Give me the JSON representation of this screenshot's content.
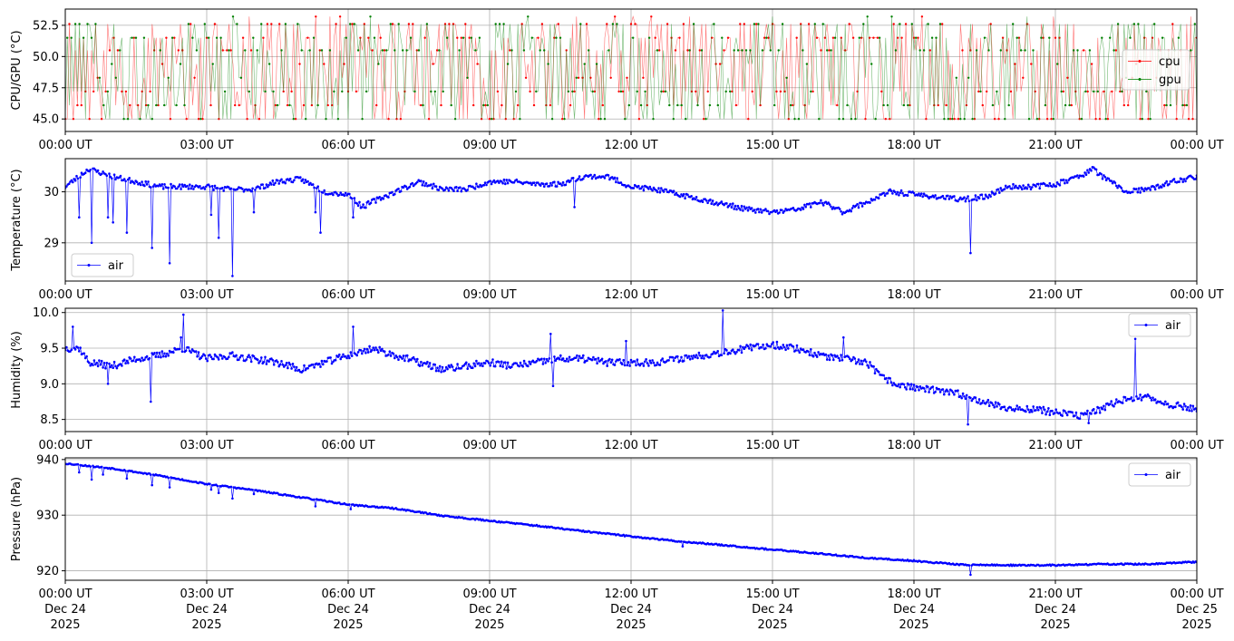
{
  "chart_data": [
    {
      "type": "line",
      "ylabel": "CPU/GPU (°C)",
      "ylim": [
        44.0,
        53.8
      ],
      "yticks": [
        45.0,
        47.5,
        50.0,
        52.5
      ],
      "ytick_labels": [
        "45.0",
        "47.5",
        "50.0",
        "52.5"
      ],
      "xlim": [
        0,
        24
      ],
      "xticks": [
        0,
        3,
        6,
        9,
        12,
        15,
        18,
        21,
        24
      ],
      "xtick_labels": [
        "00:00 UT",
        "03:00 UT",
        "06:00 UT",
        "09:00 UT",
        "12:00 UT",
        "15:00 UT",
        "18:00 UT",
        "21:00 UT",
        "00:00 UT"
      ],
      "grid": true,
      "legend": "right",
      "signal": {
        "kind": "oscillating",
        "seed": 11,
        "levels": [
          45.0,
          46.1,
          47.2,
          48.3,
          49.4,
          50.5,
          51.5,
          52.6
        ],
        "spikes": [
          53.2
        ]
      },
      "series": [
        {
          "name": "cpu",
          "color": "#ff0000",
          "values_x": [
            0,
            2,
            4,
            6,
            8,
            10,
            12,
            14,
            16,
            18,
            20,
            22,
            24
          ],
          "values_y": [
            49,
            48.5,
            48.8,
            48.2,
            48.4,
            48.6,
            48.5,
            48.3,
            48.4,
            48.5,
            48.6,
            48.9,
            48.7
          ]
        },
        {
          "name": "gpu",
          "color": "#008000",
          "values_x": [
            0,
            2,
            4,
            6,
            8,
            10,
            12,
            14,
            16,
            18,
            20,
            22,
            24
          ],
          "values_y": [
            48.8,
            48.3,
            48.6,
            48.0,
            48.2,
            48.4,
            48.3,
            48.1,
            48.2,
            48.3,
            48.4,
            48.7,
            48.5
          ]
        }
      ]
    },
    {
      "type": "line",
      "ylabel": "Temperature (°C)",
      "ylim": [
        28.25,
        30.65
      ],
      "yticks": [
        29.0,
        30.0
      ],
      "ytick_labels": [
        "29",
        "30"
      ],
      "xlim": [
        0,
        24
      ],
      "xticks": [
        0,
        3,
        6,
        9,
        12,
        15,
        18,
        21,
        24
      ],
      "xtick_labels": [
        "00:00 UT",
        "03:00 UT",
        "06:00 UT",
        "09:00 UT",
        "12:00 UT",
        "15:00 UT",
        "18:00 UT",
        "21:00 UT",
        "00:00 UT"
      ],
      "grid": true,
      "legend": "lower-left",
      "signal": {
        "kind": "noisy",
        "seed": 23,
        "noise": 0.05,
        "dips": [
          [
            0.3,
            29.5
          ],
          [
            0.55,
            29.0
          ],
          [
            0.9,
            29.5
          ],
          [
            1.0,
            29.4
          ],
          [
            1.3,
            29.2
          ],
          [
            1.85,
            28.9
          ],
          [
            2.2,
            28.6
          ],
          [
            3.1,
            29.55
          ],
          [
            3.25,
            29.1
          ],
          [
            3.55,
            28.35
          ],
          [
            4.0,
            29.6
          ],
          [
            5.3,
            29.6
          ],
          [
            5.4,
            29.2
          ],
          [
            6.1,
            29.5
          ],
          [
            10.8,
            29.7
          ],
          [
            19.2,
            28.8
          ]
        ]
      },
      "series": [
        {
          "name": "air",
          "color": "#0000ff",
          "values_x": [
            0,
            0.5,
            1,
            1.5,
            2,
            2.5,
            3,
            3.5,
            4,
            4.5,
            5,
            5.5,
            6,
            6.3,
            6.5,
            7,
            7.5,
            8,
            8.5,
            9,
            9.5,
            10,
            10.5,
            11,
            11.5,
            12,
            12.5,
            13,
            13.5,
            14,
            14.5,
            15,
            15.5,
            16,
            16.3,
            16.5,
            17,
            17.5,
            18,
            18.5,
            19,
            19.5,
            20,
            20.5,
            21,
            21.5,
            21.8,
            22,
            22.5,
            23,
            23.5,
            24
          ],
          "values_y": [
            30.1,
            30.45,
            30.3,
            30.2,
            30.1,
            30.1,
            30.1,
            30.05,
            30.05,
            30.2,
            30.25,
            30.0,
            29.95,
            29.7,
            29.8,
            30.0,
            30.2,
            30.05,
            30.05,
            30.2,
            30.2,
            30.15,
            30.15,
            30.3,
            30.3,
            30.1,
            30.05,
            29.95,
            29.85,
            29.75,
            29.65,
            29.6,
            29.65,
            29.8,
            29.7,
            29.6,
            29.8,
            30.0,
            29.95,
            29.9,
            29.85,
            29.9,
            30.1,
            30.1,
            30.15,
            30.3,
            30.45,
            30.3,
            30.0,
            30.05,
            30.2,
            30.3
          ]
        }
      ]
    },
    {
      "type": "line",
      "ylabel": "Humidity (%)",
      "ylim": [
        8.33,
        10.06
      ],
      "yticks": [
        8.5,
        9.0,
        9.5,
        10.0
      ],
      "ytick_labels": [
        "8.5",
        "9.0",
        "9.5",
        "10.0"
      ],
      "xlim": [
        0,
        24
      ],
      "xticks": [
        0,
        3,
        6,
        9,
        12,
        15,
        18,
        21,
        24
      ],
      "xtick_labels": [
        "00:00 UT",
        "03:00 UT",
        "06:00 UT",
        "09:00 UT",
        "12:00 UT",
        "15:00 UT",
        "18:00 UT",
        "21:00 UT",
        "00:00 UT"
      ],
      "grid": true,
      "legend": "upper-right",
      "signal": {
        "kind": "noisy",
        "seed": 37,
        "noise": 0.05,
        "spikes": [
          [
            0.15,
            9.8
          ],
          [
            0.9,
            9.0
          ],
          [
            1.8,
            8.75
          ],
          [
            2.45,
            9.65
          ],
          [
            2.5,
            9.97
          ],
          [
            6.1,
            9.8
          ],
          [
            10.3,
            9.7
          ],
          [
            10.35,
            8.97
          ],
          [
            11.9,
            9.6
          ],
          [
            13.95,
            10.03
          ],
          [
            16.5,
            9.65
          ],
          [
            19.15,
            8.43
          ],
          [
            22.7,
            9.63
          ],
          [
            21.7,
            8.45
          ]
        ]
      },
      "series": [
        {
          "name": "air",
          "color": "#0000ff",
          "values_x": [
            0,
            0.3,
            0.5,
            1,
            1.5,
            2,
            2.5,
            3,
            3.5,
            4,
            4.5,
            5,
            5.5,
            6,
            6.3,
            6.5,
            7,
            7.5,
            8,
            8.5,
            9,
            9.5,
            10,
            10.5,
            11,
            11.5,
            12,
            12.5,
            13,
            13.5,
            14,
            14.5,
            15,
            15.5,
            16,
            16.5,
            17,
            17.3,
            17.6,
            18,
            18.5,
            19,
            19.5,
            20,
            20.5,
            21,
            21.5,
            22,
            22.5,
            23,
            23.5,
            24
          ],
          "values_y": [
            9.5,
            9.5,
            9.3,
            9.25,
            9.35,
            9.4,
            9.5,
            9.35,
            9.4,
            9.35,
            9.3,
            9.2,
            9.3,
            9.4,
            9.45,
            9.5,
            9.4,
            9.3,
            9.2,
            9.25,
            9.3,
            9.25,
            9.3,
            9.35,
            9.35,
            9.3,
            9.3,
            9.3,
            9.35,
            9.4,
            9.45,
            9.5,
            9.55,
            9.5,
            9.4,
            9.35,
            9.3,
            9.1,
            9.0,
            8.95,
            8.9,
            8.85,
            8.75,
            8.65,
            8.65,
            8.6,
            8.55,
            8.65,
            8.8,
            8.8,
            8.7,
            8.65
          ]
        }
      ]
    },
    {
      "type": "line",
      "ylabel": "Pressure (hPa)",
      "ylim": [
        918.3,
        940.3
      ],
      "yticks": [
        920,
        930,
        940
      ],
      "ytick_labels": [
        "920",
        "930",
        "940"
      ],
      "xlim": [
        0,
        24
      ],
      "xticks": [
        0,
        3,
        6,
        9,
        12,
        15,
        18,
        21,
        24
      ],
      "xtick_labels": [
        "00:00 UT\nDec 24\n2025",
        "03:00 UT\nDec 24\n2025",
        "06:00 UT\nDec 24\n2025",
        "09:00 UT\nDec 24\n2025",
        "12:00 UT\nDec 24\n2025",
        "15:00 UT\nDec 24\n2025",
        "18:00 UT\nDec 24\n2025",
        "21:00 UT\nDec 24\n2025",
        "00:00 UT\nDec 25\n2025"
      ],
      "grid": true,
      "legend": "upper-right",
      "signal": {
        "kind": "smooth",
        "seed": 53,
        "noise": 0.12,
        "dips": [
          [
            0.3,
            937.7
          ],
          [
            0.55,
            936.4
          ],
          [
            0.8,
            937.3
          ],
          [
            1.3,
            936.6
          ],
          [
            1.85,
            935.4
          ],
          [
            2.2,
            935.0
          ],
          [
            3.1,
            934.6
          ],
          [
            3.25,
            934.0
          ],
          [
            3.55,
            933.0
          ],
          [
            4.0,
            933.8
          ],
          [
            5.3,
            931.6
          ],
          [
            6.05,
            931.1
          ],
          [
            13.1,
            924.4
          ],
          [
            19.2,
            919.3
          ]
        ]
      },
      "series": [
        {
          "name": "air",
          "color": "#0000ff",
          "values_x": [
            0,
            1,
            2,
            3,
            4,
            5,
            6,
            7,
            8,
            9,
            10,
            11,
            12,
            13,
            14,
            15,
            16,
            17,
            18,
            19,
            20,
            21,
            22,
            23,
            24
          ],
          "values_y": [
            939.3,
            938.4,
            937.1,
            935.6,
            934.5,
            933.2,
            931.9,
            931.2,
            929.9,
            929.0,
            928.1,
            927.1,
            926.2,
            925.3,
            924.6,
            923.8,
            923.1,
            922.3,
            921.8,
            921.1,
            921.0,
            921.0,
            921.2,
            921.2,
            921.6
          ]
        }
      ]
    }
  ]
}
